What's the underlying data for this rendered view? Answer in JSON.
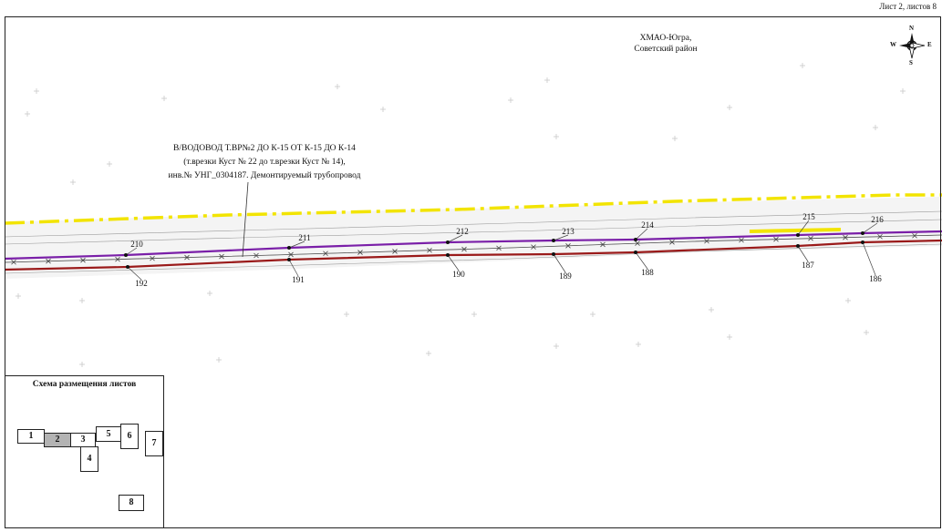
{
  "sheet_label": "Лист 2, листов 8",
  "region": {
    "line1": "ХМАО-Югра,",
    "line2": "Советский район"
  },
  "pipeline_note": {
    "line1": "В/ВОДОВОД Т.ВР№2 ДО К-15 ОТ К-15 ДО К-14",
    "line2": "(т.врезки Куст № 22 до т.врезки Куст № 14),",
    "line3": "инв.№ УНГ_0304187. Демонтируемый трубопровод"
  },
  "compass": {
    "n": "N",
    "s": "S",
    "e": "E",
    "w": "W"
  },
  "upper_points": [
    "210",
    "211",
    "212",
    "213",
    "214",
    "215",
    "216"
  ],
  "lower_points": [
    "192",
    "191",
    "190",
    "189",
    "188",
    "187",
    "186"
  ],
  "inset": {
    "title": "Схема размещения листов",
    "sheets": [
      "1",
      "2",
      "3",
      "4",
      "5",
      "6",
      "7",
      "8"
    ],
    "active": "2"
  },
  "colors": {
    "boundary": "#f2e400",
    "pipeline_upper": "#7a1fa8",
    "pipeline_lower": "#9a1a1a",
    "active_sheet": "#b3b3b3"
  }
}
